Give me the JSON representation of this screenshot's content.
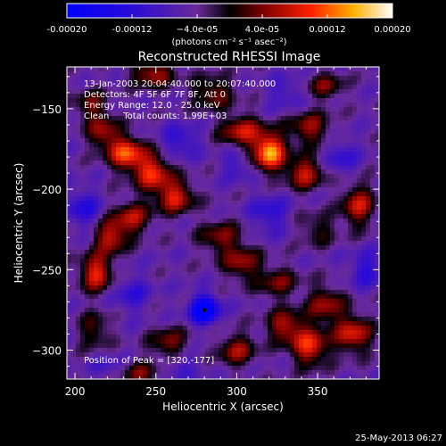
{
  "chart_data": {
    "type": "heatmap",
    "title": "Reconstructed RHESSI Image",
    "xlabel": "Heliocentric X (arcsec)",
    "ylabel": "Heliocentric Y (arcsec)",
    "xlim": [
      195,
      388
    ],
    "ylim": [
      -318,
      -124
    ],
    "x_ticks": [
      200,
      250,
      300,
      350
    ],
    "y_ticks": [
      -150,
      -200,
      -250,
      -300
    ],
    "colorbar": {
      "min": -0.0002,
      "max": 0.0002,
      "ticks": [
        -0.0002,
        -0.00012,
        -4e-05,
        4e-05,
        0.00012,
        0.0002
      ],
      "tick_labels": [
        "-0.00020",
        "-0.00012",
        "−4.0e-05",
        "4.0e-05",
        "0.00012",
        "0.00020"
      ],
      "unit_label": "(photons cm⁻² s⁻¹ asec⁻²)"
    },
    "annotations": {
      "time_range": "13-Jan-2003 20:04:40.000 to 20:07:40.000",
      "detectors": "Detectors: 4F 5F 6F 7F 8F, Att 0",
      "energy_range": "Energy Range: 12.0 - 25.0 keV",
      "method_counts": "Clean     Total counts: 1.99E+03",
      "peak_position": "Position of Peak = [320,-177]"
    },
    "peak": {
      "x": 320,
      "y": -177
    },
    "blobs": [
      {
        "x": 320,
        "y": -177,
        "v": 0.0002,
        "sx": 7,
        "sy": 8
      },
      {
        "x": 342,
        "y": -190,
        "v": 0.00012,
        "sx": 8,
        "sy": 7
      },
      {
        "x": 232,
        "y": -178,
        "v": 0.00016,
        "sx": 8,
        "sy": 7
      },
      {
        "x": 248,
        "y": -190,
        "v": 0.00014,
        "sx": 8,
        "sy": 8
      },
      {
        "x": 262,
        "y": -205,
        "v": 0.00013,
        "sx": 8,
        "sy": 7
      },
      {
        "x": 218,
        "y": -165,
        "v": 0.0001,
        "sx": 7,
        "sy": 7
      },
      {
        "x": 210,
        "y": -148,
        "v": 8e-05,
        "sx": 7,
        "sy": 7
      },
      {
        "x": 303,
        "y": -164,
        "v": 0.00012,
        "sx": 9,
        "sy": 7
      },
      {
        "x": 345,
        "y": -162,
        "v": 0.0001,
        "sx": 9,
        "sy": 7
      },
      {
        "x": 375,
        "y": -210,
        "v": 0.00012,
        "sx": 7,
        "sy": 9
      },
      {
        "x": 248,
        "y": -128,
        "v": 0.00011,
        "sx": 9,
        "sy": 6
      },
      {
        "x": 285,
        "y": -140,
        "v": 9e-05,
        "sx": 9,
        "sy": 7
      },
      {
        "x": 355,
        "y": -136,
        "v": 8e-05,
        "sx": 8,
        "sy": 6
      },
      {
        "x": 235,
        "y": -218,
        "v": 0.00011,
        "sx": 8,
        "sy": 7
      },
      {
        "x": 222,
        "y": -230,
        "v": 0.00012,
        "sx": 7,
        "sy": 7
      },
      {
        "x": 213,
        "y": -252,
        "v": 0.00014,
        "sx": 7,
        "sy": 8
      },
      {
        "x": 290,
        "y": -230,
        "v": 9e-05,
        "sx": 9,
        "sy": 7
      },
      {
        "x": 303,
        "y": -246,
        "v": 0.0001,
        "sx": 8,
        "sy": 7
      },
      {
        "x": 325,
        "y": -258,
        "v": 8e-05,
        "sx": 9,
        "sy": 7
      },
      {
        "x": 350,
        "y": -225,
        "v": 6e-05,
        "sx": 8,
        "sy": 7
      },
      {
        "x": 330,
        "y": -285,
        "v": 0.00011,
        "sx": 8,
        "sy": 7
      },
      {
        "x": 355,
        "y": -272,
        "v": 0.0001,
        "sx": 8,
        "sy": 8
      },
      {
        "x": 345,
        "y": -298,
        "v": 0.00014,
        "sx": 8,
        "sy": 8
      },
      {
        "x": 372,
        "y": -290,
        "v": 0.00013,
        "sx": 8,
        "sy": 8
      },
      {
        "x": 300,
        "y": -300,
        "v": 0.0001,
        "sx": 8,
        "sy": 7
      },
      {
        "x": 258,
        "y": -296,
        "v": 9e-05,
        "sx": 8,
        "sy": 7
      },
      {
        "x": 240,
        "y": -315,
        "v": 8e-05,
        "sx": 8,
        "sy": 6
      },
      {
        "x": 212,
        "y": -288,
        "v": 7e-05,
        "sx": 7,
        "sy": 8
      },
      {
        "x": 280,
        "y": -275,
        "v": -0.0002,
        "sx": 6,
        "sy": 6
      },
      {
        "x": 205,
        "y": -212,
        "v": -8e-05,
        "sx": 7,
        "sy": 8
      },
      {
        "x": 265,
        "y": -170,
        "v": -7e-05,
        "sx": 8,
        "sy": 7
      },
      {
        "x": 320,
        "y": -215,
        "v": -7e-05,
        "sx": 8,
        "sy": 8
      },
      {
        "x": 380,
        "y": -250,
        "v": -7e-05,
        "sx": 7,
        "sy": 8
      },
      {
        "x": 235,
        "y": -265,
        "v": -6e-05,
        "sx": 8,
        "sy": 8
      },
      {
        "x": 300,
        "y": -185,
        "v": -5e-05,
        "sx": 7,
        "sy": 7
      },
      {
        "x": 365,
        "y": -180,
        "v": -6e-05,
        "sx": 7,
        "sy": 8
      },
      {
        "x": 330,
        "y": -140,
        "v": -5e-05,
        "sx": 8,
        "sy": 7
      },
      {
        "x": 265,
        "y": -310,
        "v": -5e-05,
        "sx": 8,
        "sy": 6
      },
      {
        "x": 220,
        "y": -310,
        "v": -4e-05,
        "sx": 7,
        "sy": 6
      }
    ]
  },
  "footer": {
    "timestamp": "25-May-2013 06:27"
  }
}
